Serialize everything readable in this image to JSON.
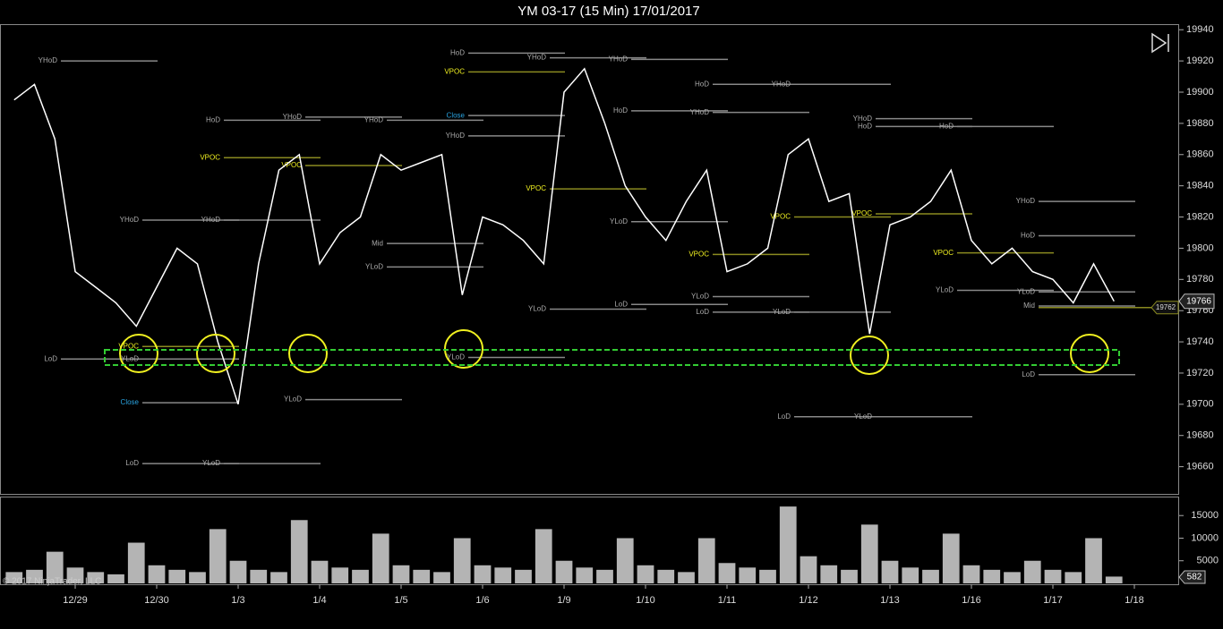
{
  "chart_data": {
    "type": "line",
    "title": "YM 03-17 (15 Min)  17/01/2017",
    "copyright": "© 2017 NinjaTrader, LLC",
    "categories": [
      null,
      null,
      null,
      null,
      "12/29",
      null,
      null,
      null,
      "12/30",
      null,
      null,
      null,
      "1/3",
      null,
      null,
      null,
      "1/4",
      null,
      null,
      null,
      "1/5",
      null,
      null,
      null,
      "1/6",
      null,
      null,
      null,
      "1/9",
      null,
      null,
      null,
      "1/10",
      null,
      null,
      null,
      "1/11",
      null,
      null,
      null,
      "1/12",
      null,
      null,
      null,
      "1/13",
      null,
      null,
      null,
      "1/16",
      null,
      null,
      null,
      "1/17",
      null,
      null,
      null,
      "1/18"
    ],
    "series": [
      {
        "name": "Price",
        "color": "#ffffff",
        "values": [
          null,
          19895,
          19905,
          19870,
          19785,
          19775,
          19765,
          19750,
          19775,
          19800,
          19790,
          19740,
          19700,
          19790,
          19850,
          19860,
          19790,
          19810,
          19820,
          19860,
          19850,
          19855,
          19860,
          19770,
          19820,
          19815,
          19805,
          19790,
          19900,
          19915,
          19880,
          19840,
          19820,
          19805,
          19830,
          19850,
          19785,
          19790,
          19800,
          19860,
          19870,
          19830,
          19835,
          19745,
          19815,
          19820,
          19830,
          19850,
          19805,
          19790,
          19800,
          19785,
          19780,
          19765,
          19790,
          19766,
          null
        ]
      }
    ],
    "ylim": [
      19642,
      19943
    ],
    "yticks": [
      19660,
      19680,
      19700,
      19720,
      19740,
      19760,
      19780,
      19800,
      19820,
      19840,
      19860,
      19880,
      19900,
      19920,
      19940
    ],
    "last_price": 19766,
    "marker_price": 19762,
    "volume": {
      "color": "#b4b4b4",
      "values": [
        null,
        2500,
        3000,
        7000,
        3500,
        2500,
        2000,
        9000,
        4000,
        3000,
        2500,
        12000,
        5000,
        3000,
        2500,
        14000,
        5000,
        3500,
        3000,
        11000,
        4000,
        3000,
        2500,
        10000,
        4000,
        3500,
        3000,
        12000,
        5000,
        3500,
        3000,
        10000,
        4000,
        3000,
        2500,
        10000,
        4500,
        3500,
        3000,
        17000,
        6000,
        4000,
        3000,
        13000,
        5000,
        3500,
        3000,
        11000,
        4000,
        3000,
        2500,
        5000,
        3000,
        2500,
        10000,
        1500,
        null
      ],
      "ylim": [
        0,
        19000
      ],
      "yticks": [
        5000,
        10000,
        15000
      ],
      "last": 582
    },
    "annotations": [
      {
        "text": "YHoD",
        "value": 19920,
        "category": "12/29"
      },
      {
        "text": "LoD",
        "value": 19729,
        "category": "12/29"
      },
      {
        "text": "YLoD",
        "value": 19729,
        "category": "12/30"
      },
      {
        "text": "VPOC",
        "value": 19737,
        "category": "12/30"
      },
      {
        "text": "YHoD",
        "value": 19818,
        "category": "12/30"
      },
      {
        "text": "Close",
        "value": 19701,
        "category": "12/30"
      },
      {
        "text": "LoD",
        "value": 19662,
        "category": "12/30"
      },
      {
        "text": "HoD",
        "value": 19882,
        "category": "1/3"
      },
      {
        "text": "YHoD",
        "value": 19818,
        "category": "1/3"
      },
      {
        "text": "VPOC",
        "value": 19858,
        "category": "1/3"
      },
      {
        "text": "YLoD",
        "value": 19662,
        "category": "1/3"
      },
      {
        "text": "YHoD",
        "value": 19884,
        "category": "1/4"
      },
      {
        "text": "YLoD",
        "value": 19703,
        "category": "1/4"
      },
      {
        "text": "VPOC",
        "value": 19853,
        "category": "1/4"
      },
      {
        "text": "Mid",
        "value": 19803,
        "category": "1/5"
      },
      {
        "text": "YHoD",
        "value": 19882,
        "category": "1/5"
      },
      {
        "text": "YLoD",
        "value": 19788,
        "category": "1/5"
      },
      {
        "text": "HoD",
        "value": 19925,
        "category": "1/6"
      },
      {
        "text": "VPOC",
        "value": 19913,
        "category": "1/6"
      },
      {
        "text": "Close",
        "value": 19885,
        "category": "1/6"
      },
      {
        "text": "YHoD",
        "value": 19872,
        "category": "1/6"
      },
      {
        "text": "YLoD",
        "value": 19730,
        "category": "1/6"
      },
      {
        "text": "YHoD",
        "value": 19922,
        "category": "1/9"
      },
      {
        "text": "VPOC",
        "value": 19838,
        "category": "1/9"
      },
      {
        "text": "YLoD",
        "value": 19761,
        "category": "1/9"
      },
      {
        "text": "YHoD",
        "value": 19921,
        "category": "1/10"
      },
      {
        "text": "HoD",
        "value": 19888,
        "category": "1/10"
      },
      {
        "text": "YLoD",
        "value": 19817,
        "category": "1/10"
      },
      {
        "text": "LoD",
        "value": 19764,
        "category": "1/10"
      },
      {
        "text": "HoD",
        "value": 19905,
        "category": "1/11"
      },
      {
        "text": "YHoD",
        "value": 19887,
        "category": "1/11"
      },
      {
        "text": "VPOC",
        "value": 19796,
        "category": "1/11"
      },
      {
        "text": "YLoD",
        "value": 19769,
        "category": "1/11"
      },
      {
        "text": "LoD",
        "value": 19759,
        "category": "1/11"
      },
      {
        "text": "YHoD",
        "value": 19905,
        "category": "1/12"
      },
      {
        "text": "YLoD",
        "value": 19759,
        "category": "1/12"
      },
      {
        "text": "VPOC",
        "value": 19820,
        "category": "1/12"
      },
      {
        "text": "LoD",
        "value": 19692,
        "category": "1/12"
      },
      {
        "text": "YHoD",
        "value": 19883,
        "category": "1/13"
      },
      {
        "text": "HoD",
        "value": 19878,
        "category": "1/13"
      },
      {
        "text": "VPOC",
        "value": 19822,
        "category": "1/13"
      },
      {
        "text": "YLoD",
        "value": 19692,
        "category": "1/13"
      },
      {
        "text": "HoD",
        "value": 19878,
        "category": "1/16"
      },
      {
        "text": "VPOC",
        "value": 19797,
        "category": "1/16"
      },
      {
        "text": "YLoD",
        "value": 19773,
        "category": "1/16"
      },
      {
        "text": "YHoD",
        "value": 19830,
        "category": "1/17"
      },
      {
        "text": "HoD",
        "value": 19808,
        "category": "1/17"
      },
      {
        "text": "YLoD",
        "value": 19772,
        "category": "1/17"
      },
      {
        "text": "Mid",
        "value": 19763,
        "category": "1/17"
      },
      {
        "text": "LoD",
        "value": 19719,
        "category": "1/17"
      }
    ]
  }
}
